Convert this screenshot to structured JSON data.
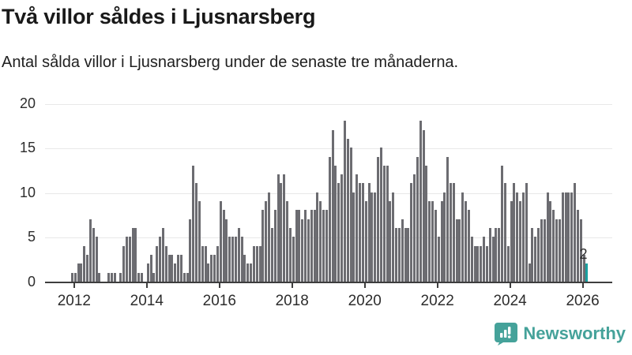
{
  "header": {
    "title": "Två villor såldes i Ljusnarsberg",
    "subtitle": "Antal sålda villor i Ljusnarsberg under de senaste tre månaderna."
  },
  "chart_data": {
    "type": "bar",
    "title": "Två villor såldes i Ljusnarsberg",
    "subtitle": "Antal sålda villor i Ljusnarsberg under de senaste tre månaderna.",
    "frequency": "monthly",
    "x_start": "2011-12",
    "x_end": "2026-02",
    "values": [
      1,
      1,
      2,
      2,
      4,
      3,
      7,
      6,
      5,
      1,
      0,
      0,
      1,
      1,
      1,
      0,
      1,
      4,
      5,
      5,
      6,
      6,
      1,
      1,
      0,
      2,
      3,
      1,
      4,
      5,
      6,
      4,
      3,
      3,
      2,
      3,
      3,
      1,
      1,
      7,
      13,
      11,
      9,
      4,
      4,
      2,
      3,
      3,
      4,
      9,
      8,
      7,
      5,
      5,
      5,
      6,
      5,
      3,
      2,
      2,
      4,
      4,
      4,
      8,
      9,
      10,
      6,
      8,
      12,
      11,
      12,
      9,
      6,
      5,
      8,
      8,
      7,
      8,
      7,
      8,
      8,
      10,
      9,
      8,
      8,
      14,
      17,
      13,
      11,
      12,
      18,
      16,
      15,
      10,
      12,
      11,
      11,
      9,
      11,
      10,
      10,
      14,
      15,
      13,
      13,
      9,
      10,
      6,
      6,
      7,
      6,
      6,
      11,
      12,
      14,
      18,
      17,
      13,
      9,
      9,
      8,
      5,
      9,
      10,
      14,
      11,
      11,
      7,
      7,
      10,
      9,
      8,
      5,
      4,
      4,
      4,
      5,
      4,
      6,
      5,
      6,
      6,
      13,
      11,
      4,
      9,
      11,
      10,
      9,
      10,
      11,
      2,
      6,
      5,
      6,
      7,
      7,
      10,
      9,
      8,
      7,
      7,
      10,
      10,
      10,
      10,
      11,
      8,
      7,
      3,
      2
    ],
    "highlight_last": {
      "value": 2,
      "label": "2",
      "color": "#18a0a0"
    },
    "bar_color": "#6c6c71",
    "ylim": [
      0,
      20
    ],
    "y_ticks": [
      0,
      5,
      10,
      15,
      20
    ],
    "x_tick_years": [
      "2012",
      "2014",
      "2016",
      "2018",
      "2020",
      "2022",
      "2024",
      "2026"
    ],
    "grid": true,
    "legend": "none"
  },
  "annotation": {
    "last_value_label": "2"
  },
  "footer": {
    "brand": "Newsworthy",
    "logo_color": "#45a29a"
  },
  "colors": {
    "bar": "#6c6c71",
    "highlight": "#18a0a0",
    "axis": "#3e3e3e",
    "grid": "#e8e8e8",
    "text": "#2d2d2d"
  }
}
